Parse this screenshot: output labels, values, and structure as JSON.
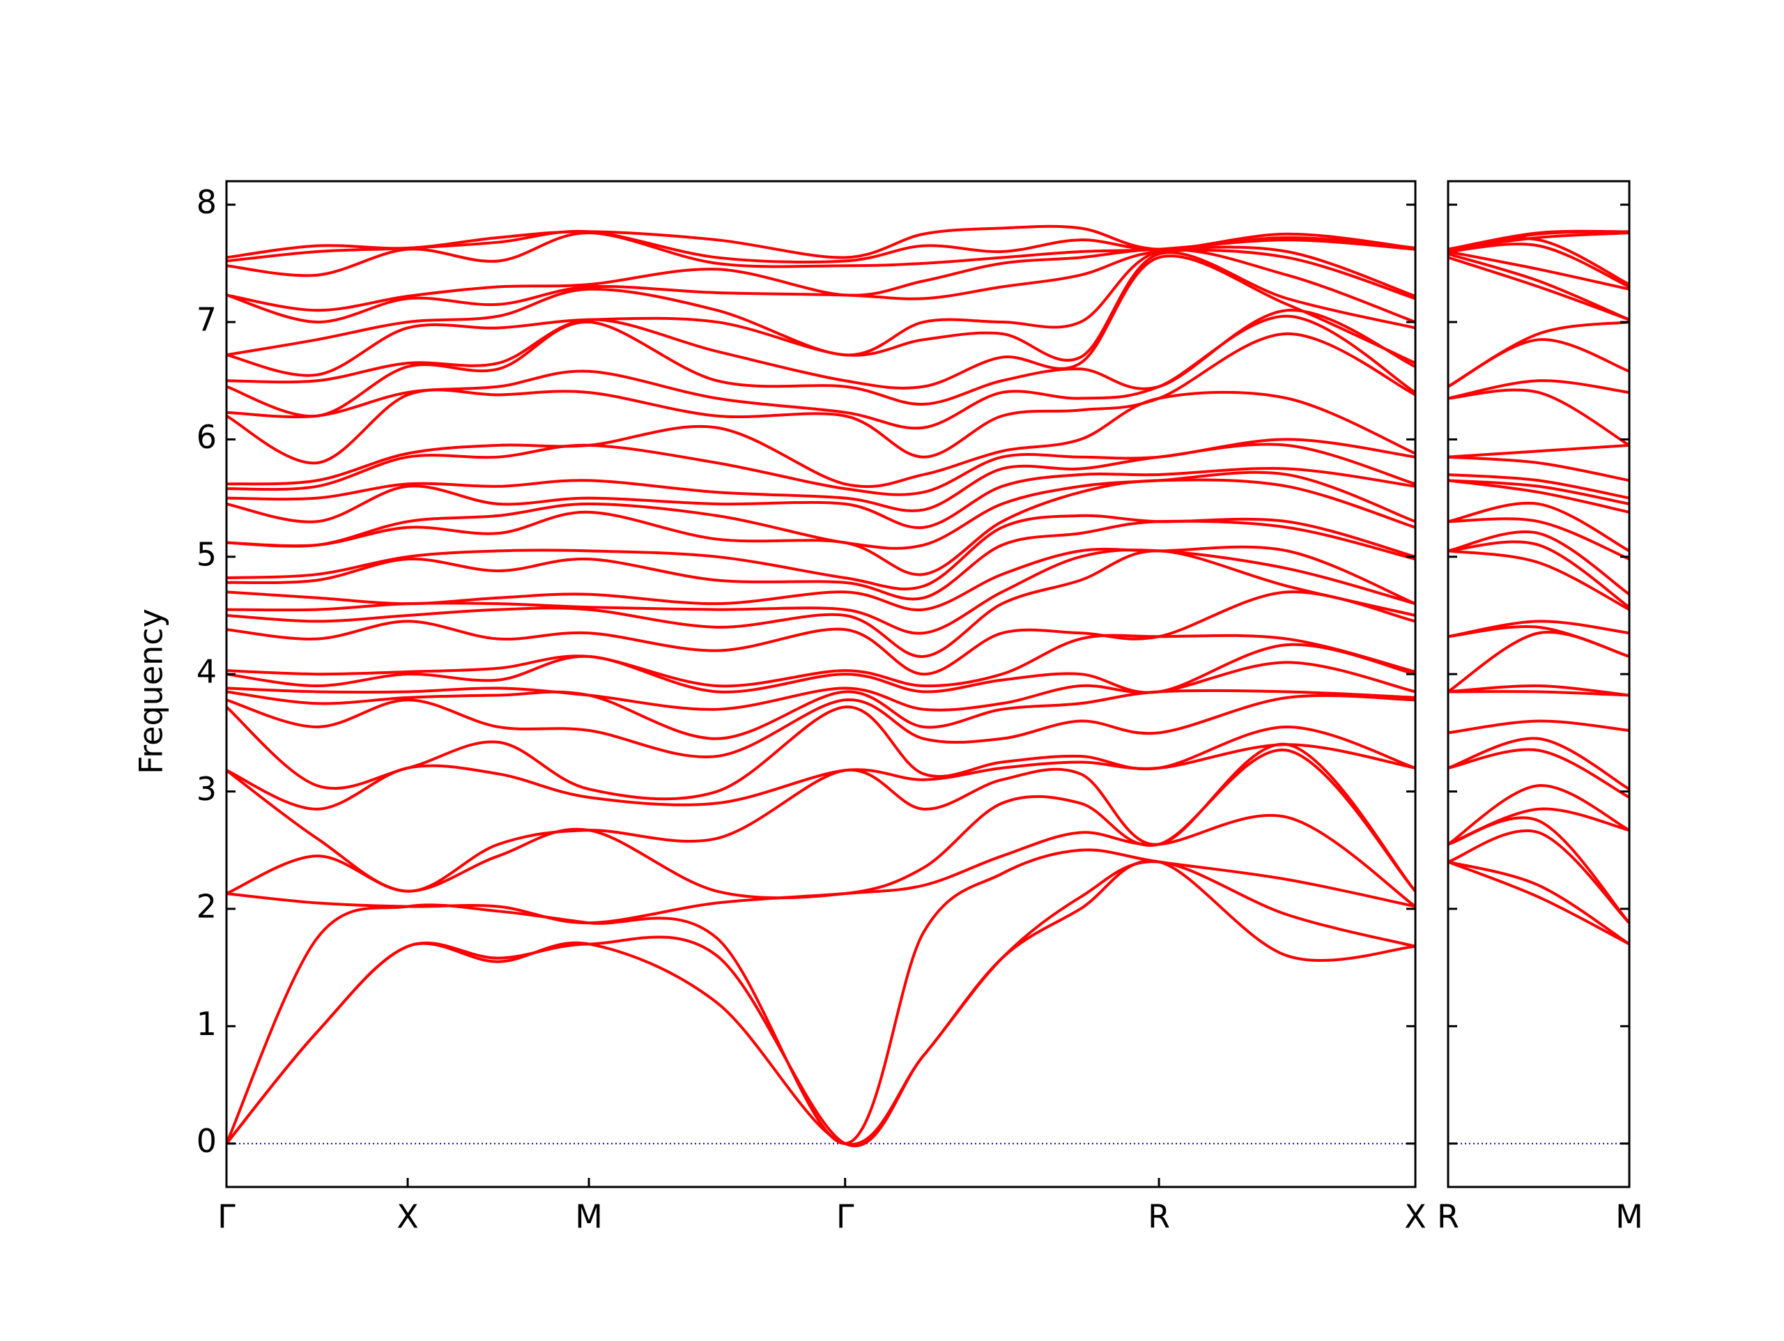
{
  "chart_data": [
    {
      "type": "band-structure",
      "ylabel": "Frequency",
      "color": "#ff0000",
      "x": [
        0,
        0.5,
        1,
        1.5,
        2,
        2.707,
        3.414,
        3.847,
        4.28,
        4.713,
        5.146,
        5.854,
        6.561
      ],
      "xlim": [
        0,
        6.561
      ],
      "xticks": [
        {
          "value": 0,
          "label": "Γ"
        },
        {
          "value": 1,
          "label": "X"
        },
        {
          "value": 2,
          "label": "M"
        },
        {
          "value": 3.414,
          "label": "Γ"
        },
        {
          "value": 5.146,
          "label": "R"
        },
        {
          "value": 6.561,
          "label": "X"
        }
      ],
      "ylim": [
        -0.37,
        8.2
      ],
      "yticks": [
        0,
        1,
        2,
        3,
        4,
        5,
        6,
        7,
        8
      ],
      "show_ytick_labels": true,
      "zero_line": {
        "value": 0,
        "color": "#0000cc"
      },
      "frequencies": [
        [
          0,
          0,
          0,
          2.13,
          2.13,
          3.18,
          3.18,
          3.72,
          3.78,
          3.85,
          3.88,
          4.0,
          4.03,
          4.38,
          4.5,
          4.55,
          4.7,
          4.78,
          4.82,
          5.12,
          5.12,
          5.45,
          5.5,
          5.58,
          5.62,
          6.2,
          6.23,
          6.45,
          6.5,
          6.72,
          6.72,
          7.23,
          7.23,
          7.48,
          7.52,
          7.55
        ],
        [
          0.95,
          0.95,
          1.75,
          2.05,
          2.45,
          2.6,
          2.85,
          3.05,
          3.55,
          3.75,
          3.85,
          3.9,
          4.0,
          4.3,
          4.45,
          4.55,
          4.65,
          4.8,
          4.85,
          5.1,
          5.1,
          5.3,
          5.5,
          5.6,
          5.65,
          5.8,
          6.2,
          6.2,
          6.5,
          6.55,
          6.85,
          7.0,
          7.1,
          7.4,
          7.6,
          7.65
        ],
        [
          1.68,
          1.68,
          2.02,
          2.02,
          2.15,
          2.15,
          3.2,
          3.2,
          3.78,
          3.8,
          3.85,
          4.0,
          4.02,
          4.45,
          4.5,
          4.6,
          4.6,
          4.98,
          5.0,
          5.25,
          5.3,
          5.6,
          5.62,
          5.85,
          5.88,
          6.38,
          6.4,
          6.62,
          6.65,
          6.95,
          7.0,
          7.2,
          7.22,
          7.62,
          7.63,
          7.63
        ],
        [
          1.55,
          1.58,
          1.98,
          2.02,
          2.45,
          2.55,
          3.15,
          3.42,
          3.55,
          3.82,
          3.88,
          3.95,
          4.05,
          4.3,
          4.55,
          4.6,
          4.65,
          4.88,
          5.05,
          5.2,
          5.35,
          5.45,
          5.6,
          5.85,
          5.95,
          6.38,
          6.45,
          6.6,
          6.65,
          6.95,
          7.05,
          7.15,
          7.3,
          7.52,
          7.68,
          7.72
        ],
        [
          1.7,
          1.7,
          1.88,
          1.88,
          2.67,
          2.67,
          2.95,
          3.02,
          3.52,
          3.82,
          3.82,
          4.15,
          4.15,
          4.35,
          4.55,
          4.57,
          4.68,
          4.98,
          5.05,
          5.38,
          5.45,
          5.5,
          5.65,
          5.95,
          5.95,
          6.4,
          6.58,
          7.0,
          7.02,
          7.02,
          7.28,
          7.3,
          7.32,
          7.76,
          7.77,
          7.77
        ],
        [
          1.2,
          1.6,
          1.75,
          2.05,
          2.15,
          2.6,
          2.9,
          3.0,
          3.3,
          3.45,
          3.7,
          3.85,
          3.9,
          4.2,
          4.4,
          4.55,
          4.6,
          4.8,
          5.0,
          5.15,
          5.35,
          5.45,
          5.55,
          5.8,
          6.1,
          6.2,
          6.35,
          6.5,
          6.75,
          7.0,
          7.1,
          7.25,
          7.45,
          7.5,
          7.55,
          7.7
        ],
        [
          0,
          0,
          0,
          2.13,
          2.13,
          3.18,
          3.18,
          3.72,
          3.78,
          3.85,
          3.88,
          4.0,
          4.03,
          4.38,
          4.5,
          4.55,
          4.7,
          4.78,
          4.82,
          5.12,
          5.12,
          5.45,
          5.5,
          5.58,
          5.62,
          6.2,
          6.23,
          6.45,
          6.5,
          6.72,
          6.72,
          7.23,
          7.23,
          7.48,
          7.52,
          7.55
        ],
        [
          0.75,
          0.75,
          1.8,
          2.2,
          2.35,
          2.85,
          3.1,
          3.15,
          3.45,
          3.55,
          3.7,
          3.85,
          3.9,
          4.0,
          4.15,
          4.35,
          4.55,
          4.65,
          4.75,
          4.85,
          5.1,
          5.25,
          5.4,
          5.55,
          5.7,
          5.85,
          6.1,
          6.3,
          6.45,
          6.85,
          7.0,
          7.2,
          7.35,
          7.5,
          7.65,
          7.75
        ],
        [
          1.58,
          1.58,
          2.3,
          2.45,
          2.9,
          3.1,
          3.2,
          3.25,
          3.45,
          3.7,
          3.75,
          3.95,
          4.0,
          4.35,
          4.6,
          4.7,
          4.85,
          5.1,
          5.25,
          5.3,
          5.45,
          5.6,
          5.75,
          5.85,
          5.9,
          6.2,
          6.4,
          6.5,
          6.7,
          6.9,
          7.0,
          7.3,
          7.5,
          7.55,
          7.6,
          7.8
        ],
        [
          2.0,
          2.1,
          2.5,
          2.65,
          2.9,
          3.15,
          3.25,
          3.3,
          3.6,
          3.75,
          3.9,
          4.0,
          4.3,
          4.35,
          4.8,
          5.0,
          5.05,
          5.2,
          5.35,
          5.55,
          5.6,
          5.7,
          5.75,
          5.85,
          6.0,
          6.25,
          6.35,
          6.6,
          6.65,
          6.7,
          7.0,
          7.4,
          7.55,
          7.6,
          7.7,
          7.8
        ],
        [
          2.4,
          2.4,
          2.4,
          2.55,
          2.55,
          2.55,
          3.2,
          3.2,
          3.5,
          3.85,
          3.85,
          3.85,
          4.32,
          4.32,
          5.05,
          5.05,
          5.05,
          5.3,
          5.3,
          5.65,
          5.65,
          5.7,
          5.85,
          5.85,
          6.35,
          6.35,
          6.45,
          6.45,
          7.55,
          7.58,
          7.6,
          7.6,
          7.62,
          7.62,
          7.62,
          7.62
        ],
        [
          1.6,
          1.95,
          2.25,
          2.78,
          3.35,
          3.4,
          3.4,
          3.55,
          3.8,
          3.85,
          4.1,
          4.25,
          4.3,
          4.7,
          4.75,
          4.9,
          5.05,
          5.25,
          5.3,
          5.6,
          5.7,
          5.75,
          5.95,
          6.0,
          6.35,
          6.9,
          7.05,
          7.1,
          7.15,
          7.2,
          7.4,
          7.55,
          7.6,
          7.7,
          7.72,
          7.75
        ],
        [
          1.68,
          1.68,
          2.02,
          2.02,
          2.15,
          2.15,
          3.2,
          3.2,
          3.78,
          3.8,
          3.85,
          4.0,
          4.02,
          4.45,
          4.5,
          4.6,
          4.6,
          4.98,
          5.0,
          5.25,
          5.3,
          5.6,
          5.62,
          5.85,
          5.88,
          6.38,
          6.4,
          6.62,
          6.65,
          6.95,
          7.0,
          7.2,
          7.22,
          7.62,
          7.63,
          7.63
        ]
      ]
    },
    {
      "type": "band-structure",
      "color": "#ff0000",
      "x": [
        0,
        0.5,
        1
      ],
      "xlim": [
        0,
        1
      ],
      "xticks": [
        {
          "value": 0,
          "label": "R"
        },
        {
          "value": 1,
          "label": "M"
        }
      ],
      "ylim": [
        -0.37,
        8.2
      ],
      "yticks": [
        0,
        1,
        2,
        3,
        4,
        5,
        6,
        7,
        8
      ],
      "show_ytick_labels": false,
      "zero_line": {
        "value": 0,
        "color": "#0000cc"
      },
      "frequencies": [
        [
          2.4,
          2.4,
          2.4,
          2.55,
          2.55,
          2.55,
          3.2,
          3.2,
          3.5,
          3.85,
          3.85,
          3.85,
          4.32,
          4.32,
          5.05,
          5.05,
          5.05,
          5.3,
          5.3,
          5.65,
          5.65,
          5.7,
          5.85,
          5.85,
          6.35,
          6.35,
          6.45,
          6.45,
          7.55,
          7.58,
          7.6,
          7.6,
          7.62,
          7.62,
          7.62,
          7.62
        ],
        [
          2.1,
          2.2,
          2.65,
          2.75,
          2.85,
          3.05,
          3.35,
          3.45,
          3.6,
          3.85,
          3.9,
          4.35,
          4.4,
          4.45,
          4.95,
          5.1,
          5.2,
          5.3,
          5.45,
          5.55,
          5.6,
          5.65,
          5.8,
          5.9,
          6.4,
          6.5,
          6.85,
          6.9,
          7.3,
          7.35,
          7.45,
          7.65,
          7.7,
          7.72,
          7.75,
          7.76
        ],
        [
          1.7,
          1.7,
          1.88,
          1.88,
          2.67,
          2.67,
          2.95,
          3.02,
          3.52,
          3.82,
          3.82,
          4.15,
          4.15,
          4.35,
          4.55,
          4.57,
          4.68,
          4.98,
          5.05,
          5.38,
          5.45,
          5.5,
          5.65,
          5.95,
          5.95,
          6.4,
          6.58,
          7.0,
          7.02,
          7.02,
          7.28,
          7.3,
          7.32,
          7.76,
          7.77,
          7.77
        ]
      ]
    }
  ]
}
